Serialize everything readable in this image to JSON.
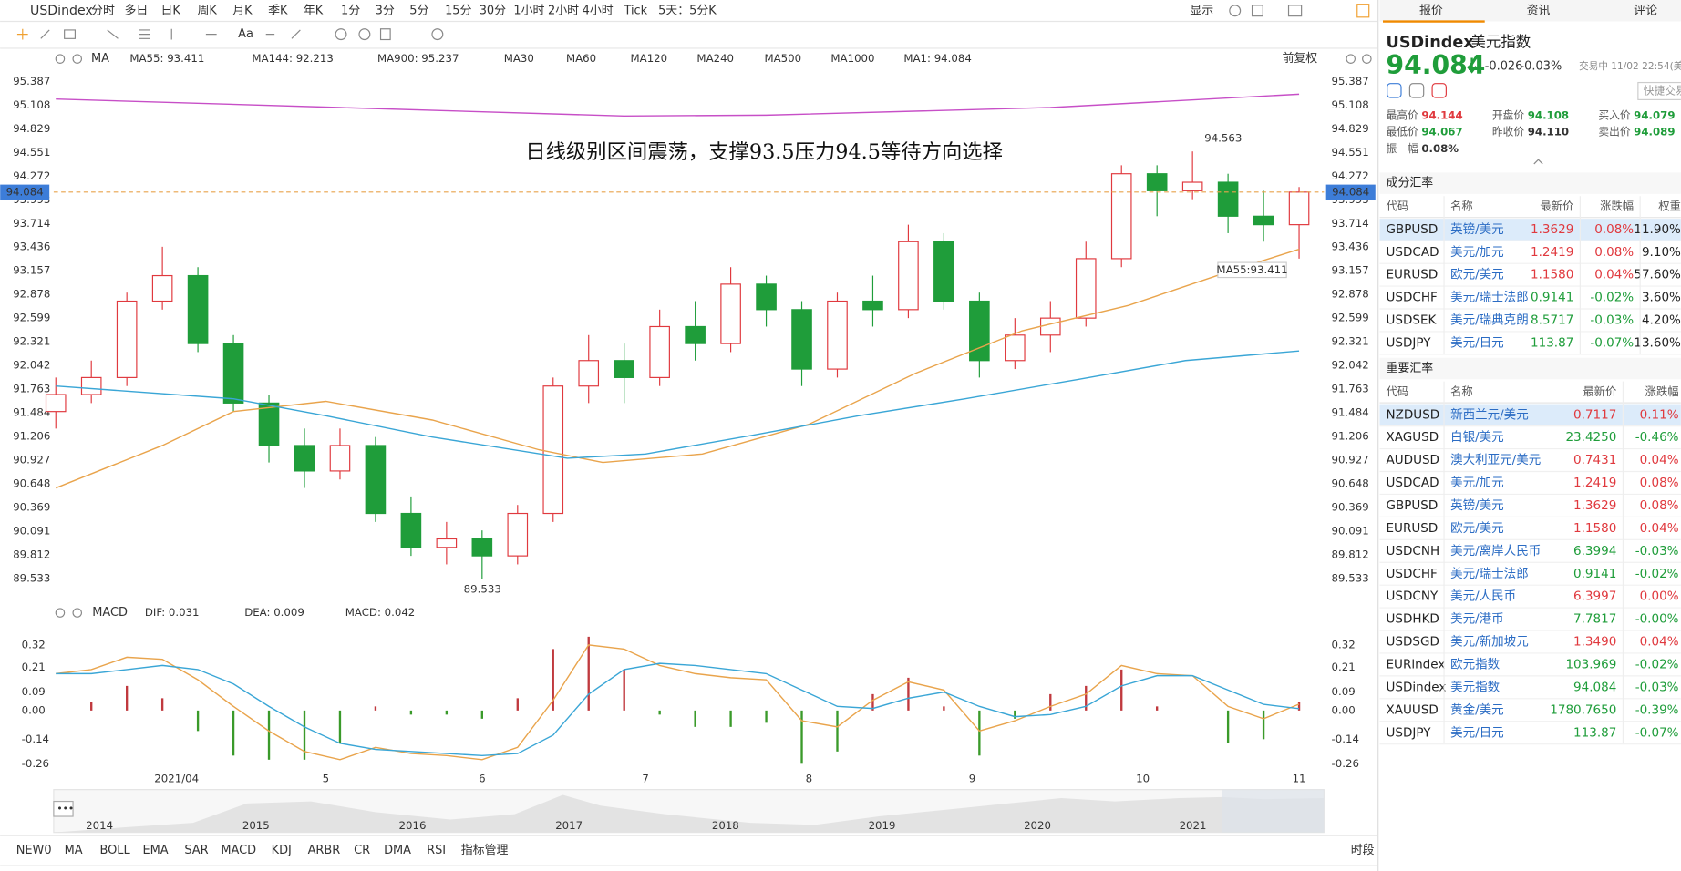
{
  "toolbar": {
    "symbol": "USDindex",
    "periods": [
      "分时",
      "多日",
      "日K",
      "周K",
      "月K",
      "季K",
      "年K",
      "1分",
      "3分",
      "5分",
      "15分",
      "30分",
      "1小时",
      "2小时",
      "4小时",
      "Tick",
      "5天：5分K"
    ],
    "display": "显示",
    "adjust": "前复权"
  },
  "indicator_header": {
    "ma": "MA",
    "inactive_ma": [
      "MA30",
      "MA60",
      "MA120",
      "MA240",
      "MA500",
      "MA1000"
    ],
    "ma1": "MA1: 94.084",
    "macd": "MACD"
  },
  "chart_data": [
    {
      "type": "candlestick",
      "annotation": "日线级别区间震荡，支撑93.5压力94.5等待方向选择",
      "x": [
        0,
        5,
        10,
        15,
        20,
        25,
        30,
        35,
        40,
        45,
        50,
        55,
        60,
        65,
        70,
        75,
        80,
        85,
        90,
        95,
        100,
        105,
        110,
        115,
        120,
        125,
        130,
        135,
        140,
        145,
        150,
        155,
        160,
        165,
        170,
        175
      ],
      "open": [
        91.5,
        91.7,
        91.9,
        92.8,
        93.1,
        92.3,
        91.6,
        91.1,
        90.8,
        91.1,
        90.3,
        89.9,
        90.0,
        89.8,
        90.3,
        91.8,
        92.1,
        91.9,
        92.5,
        92.3,
        93.0,
        92.7,
        92.0,
        92.8,
        92.7,
        93.5,
        92.8,
        92.1,
        92.4,
        92.6,
        93.3,
        94.3,
        94.1,
        94.2,
        93.8,
        93.7
      ],
      "high": [
        91.9,
        92.1,
        92.9,
        93.44,
        93.2,
        92.4,
        91.7,
        91.3,
        91.3,
        91.2,
        90.5,
        90.2,
        90.1,
        90.4,
        91.9,
        92.4,
        92.3,
        92.7,
        92.8,
        93.2,
        93.1,
        92.8,
        92.9,
        93.1,
        93.7,
        93.6,
        92.9,
        92.6,
        92.8,
        93.5,
        94.4,
        94.4,
        94.563,
        94.3,
        94.1,
        94.144
      ],
      "low": [
        91.3,
        91.6,
        91.8,
        92.7,
        92.2,
        91.5,
        90.9,
        90.6,
        90.7,
        90.2,
        89.8,
        89.7,
        89.533,
        89.7,
        90.2,
        91.6,
        91.6,
        91.8,
        92.1,
        92.2,
        92.5,
        91.8,
        91.9,
        92.5,
        92.6,
        92.7,
        91.9,
        92.0,
        92.2,
        92.5,
        93.2,
        93.8,
        94.0,
        93.6,
        93.5,
        93.3
      ],
      "close": [
        91.7,
        91.9,
        92.8,
        93.1,
        92.3,
        91.6,
        91.1,
        90.8,
        91.1,
        90.3,
        89.9,
        90.0,
        89.8,
        90.3,
        91.8,
        92.1,
        91.9,
        92.5,
        92.3,
        93.0,
        92.7,
        92.0,
        92.8,
        92.7,
        93.5,
        92.8,
        92.1,
        92.4,
        92.6,
        93.3,
        94.3,
        94.1,
        94.2,
        93.8,
        93.7,
        94.084
      ],
      "up_color": "#e0393e",
      "down_color": "#1f9d3a",
      "series": [
        {
          "name": "MA55: 93.411",
          "color": "#e9a44c",
          "x": [
            0,
            15,
            25,
            38,
            53,
            68,
            77,
            91,
            106,
            121,
            136,
            151,
            167,
            175
          ],
          "values": [
            90.6,
            91.1,
            91.5,
            91.62,
            91.4,
            91.05,
            90.9,
            91.0,
            91.35,
            91.95,
            92.45,
            92.75,
            93.2,
            93.411
          ]
        },
        {
          "name": "MA144: 92.213",
          "color": "#3aa6d6",
          "x": [
            0,
            25,
            38,
            53,
            72,
            83,
            98,
            113,
            128,
            144,
            159,
            175
          ],
          "values": [
            91.8,
            91.65,
            91.45,
            91.2,
            90.95,
            91.0,
            91.22,
            91.45,
            91.65,
            91.88,
            92.1,
            92.213
          ]
        },
        {
          "name": "MA900: 95.237",
          "color": "#c74fc7",
          "x": [
            0,
            40,
            80,
            100,
            140,
            175
          ],
          "values": [
            95.18,
            95.08,
            94.98,
            94.99,
            95.08,
            95.237
          ]
        }
      ],
      "last_price": 94.084,
      "high_label": 94.563,
      "low_label": 89.533,
      "ma_tag": "MA55:93.411",
      "xlim": [
        -0.3,
        178.5
      ],
      "xticks": [
        {
          "value": 17,
          "label": "2021/04"
        },
        {
          "value": 38,
          "label": "5"
        },
        {
          "value": 60,
          "label": "6"
        },
        {
          "value": 83,
          "label": "7"
        },
        {
          "value": 106,
          "label": "8"
        },
        {
          "value": 129,
          "label": "9"
        },
        {
          "value": 153,
          "label": "10"
        },
        {
          "value": 175,
          "label": "11"
        }
      ],
      "ylim": [
        89.281,
        95.526
      ],
      "yticks": [
        95.387,
        95.108,
        94.829,
        94.551,
        94.272,
        93.993,
        93.714,
        93.436,
        93.157,
        92.878,
        92.599,
        92.321,
        92.042,
        91.763,
        91.484,
        91.206,
        90.927,
        90.648,
        90.369,
        90.091,
        89.812,
        89.533
      ],
      "grid": true
    },
    {
      "type": "macd",
      "x": [
        0,
        5,
        10,
        15,
        20,
        25,
        30,
        35,
        40,
        45,
        50,
        55,
        60,
        65,
        70,
        75,
        80,
        85,
        90,
        95,
        100,
        105,
        110,
        115,
        120,
        125,
        130,
        135,
        140,
        145,
        150,
        155,
        160,
        165,
        170,
        175
      ],
      "series": [
        {
          "name": "DIF: 0.031",
          "color": "#e9a44c",
          "values": [
            0.18,
            0.2,
            0.26,
            0.25,
            0.15,
            0.02,
            -0.1,
            -0.2,
            -0.24,
            -0.18,
            -0.21,
            -0.22,
            -0.24,
            -0.18,
            0.05,
            0.32,
            0.3,
            0.22,
            0.18,
            0.16,
            0.15,
            -0.05,
            -0.08,
            0.05,
            0.14,
            0.1,
            -0.1,
            -0.05,
            0.02,
            0.08,
            0.22,
            0.18,
            0.17,
            0.02,
            -0.04,
            0.031
          ]
        },
        {
          "name": "DEA: 0.009",
          "color": "#3aa6d6",
          "values": [
            0.18,
            0.18,
            0.2,
            0.22,
            0.2,
            0.13,
            0.02,
            -0.08,
            -0.16,
            -0.19,
            -0.2,
            -0.21,
            -0.22,
            -0.21,
            -0.12,
            0.08,
            0.2,
            0.23,
            0.22,
            0.2,
            0.18,
            0.1,
            0.02,
            0.01,
            0.06,
            0.09,
            0.02,
            -0.03,
            -0.02,
            0.02,
            0.12,
            0.17,
            0.17,
            0.1,
            0.03,
            0.009
          ]
        },
        {
          "name": "MACD: 0.042",
          "color": "#c74fc7",
          "values": [
            0.0,
            0.04,
            0.12,
            0.06,
            -0.1,
            -0.22,
            -0.24,
            -0.24,
            -0.16,
            0.02,
            -0.02,
            -0.02,
            -0.04,
            0.06,
            0.3,
            0.36,
            0.2,
            -0.02,
            -0.08,
            -0.08,
            -0.06,
            -0.26,
            -0.2,
            0.08,
            0.16,
            0.02,
            -0.22,
            -0.04,
            0.08,
            0.12,
            0.2,
            0.02,
            0.0,
            -0.16,
            -0.14,
            0.042
          ]
        }
      ],
      "up_color": "#c0393e",
      "down_color": "#3a9a2a",
      "xlim": [
        -0.3,
        178.5
      ],
      "ylim": [
        -0.297,
        0.409
      ],
      "yticks": [
        0.32,
        0.21,
        0.09,
        {
          "value": 0,
          "label": "0.00"
        },
        -0.14,
        -0.26
      ]
    }
  ],
  "navigator": {
    "labels": [
      "2014",
      "2015",
      "2016",
      "2017",
      "2018",
      "2019",
      "2020",
      "2021"
    ]
  },
  "indicator_tabs": [
    "NEW0",
    "MA",
    "BOLL",
    "EMA",
    "SAR",
    "MACD",
    "KDJ",
    "ARBR",
    "CR",
    "DMA",
    "RSI",
    "指标管理"
  ],
  "session": "时段",
  "quote_panel": {
    "tabs": [
      "报价",
      "资讯",
      "评论"
    ],
    "symbol": "USDindex",
    "name": "美元指数",
    "price": "94.084",
    "change": "-0.026",
    "change_pct": "-0.03%",
    "status": "交易中 11/02 22:54(美",
    "quick_trade": "快捷交易",
    "stats": [
      {
        "label": "最高价",
        "value": "94.144"
      },
      {
        "label": "开盘价",
        "value": "94.108"
      },
      {
        "label": "买入价",
        "value": "94.079"
      },
      {
        "label": "最低价",
        "value": "94.067"
      },
      {
        "label": "昨收价",
        "value": "94.110"
      },
      {
        "label": "卖出价",
        "value": "94.089"
      },
      {
        "label": "振　幅",
        "value": "0.08%"
      }
    ],
    "components": {
      "title": "成分汇率",
      "columns": [
        "代码",
        "名称",
        "最新价",
        "涨跌幅",
        "权重"
      ],
      "rows": [
        [
          "GBPUSD",
          "英镑/美元",
          "1.3629",
          "0.08%",
          "11.90%"
        ],
        [
          "USDCAD",
          "美元/加元",
          "1.2419",
          "0.08%",
          "9.10%"
        ],
        [
          "EURUSD",
          "欧元/美元",
          "1.1580",
          "0.04%",
          "57.60%"
        ],
        [
          "USDCHF",
          "美元/瑞士法郎",
          "0.9141",
          "-0.02%",
          "3.60%"
        ],
        [
          "USDSEK",
          "美元/瑞典克朗",
          "8.5717",
          "-0.03%",
          "4.20%"
        ],
        [
          "USDJPY",
          "美元/日元",
          "113.87",
          "-0.07%",
          "13.60%"
        ]
      ]
    },
    "major": {
      "title": "重要汇率",
      "columns": [
        "代码",
        "名称",
        "最新价",
        "涨跌幅"
      ],
      "rows": [
        [
          "NZDUSD",
          "新西兰元/美元",
          "0.7117",
          "0.11%"
        ],
        [
          "XAGUSD",
          "白银/美元",
          "23.4250",
          "-0.46%"
        ],
        [
          "AUDUSD",
          "澳大利亚元/美元",
          "0.7431",
          "0.04%"
        ],
        [
          "USDCAD",
          "美元/加元",
          "1.2419",
          "0.08%"
        ],
        [
          "GBPUSD",
          "英镑/美元",
          "1.3629",
          "0.08%"
        ],
        [
          "EURUSD",
          "欧元/美元",
          "1.1580",
          "0.04%"
        ],
        [
          "USDCNH",
          "美元/离岸人民币",
          "6.3994",
          "-0.03%"
        ],
        [
          "USDCHF",
          "美元/瑞士法郎",
          "0.9141",
          "-0.02%"
        ],
        [
          "USDCNY",
          "美元/人民币",
          "6.3997",
          "0.00%"
        ],
        [
          "USDHKD",
          "美元/港币",
          "7.7817",
          "-0.00%"
        ],
        [
          "USDSGD",
          "美元/新加坡元",
          "1.3490",
          "0.04%"
        ],
        [
          "EURindex",
          "欧元指数",
          "103.969",
          "-0.02%"
        ],
        [
          "USDindex",
          "美元指数",
          "94.084",
          "-0.03%"
        ],
        [
          "XAUUSD",
          "黄金/美元",
          "1780.7650",
          "-0.39%"
        ],
        [
          "USDJPY",
          "美元/日元",
          "113.87",
          "-0.07%"
        ]
      ]
    }
  }
}
